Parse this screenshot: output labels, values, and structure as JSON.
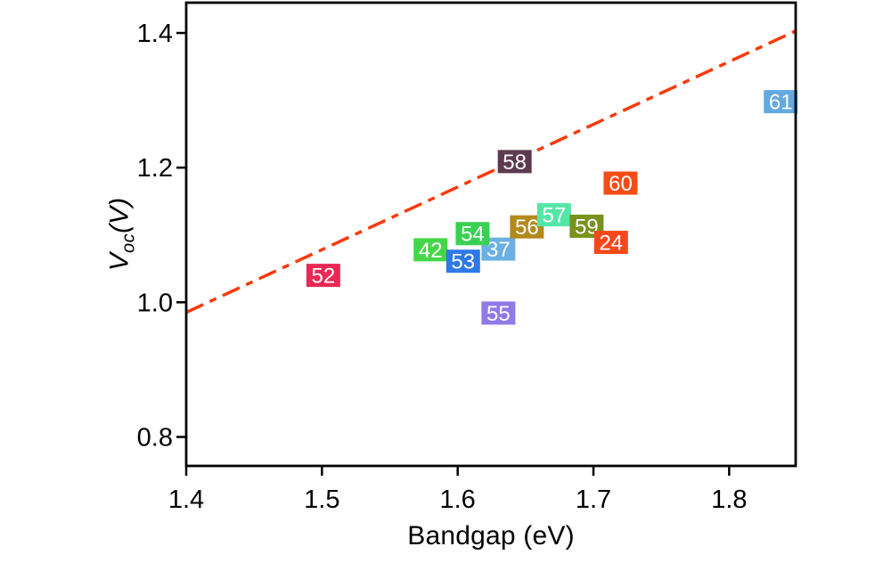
{
  "figure": {
    "background": "#ffffff",
    "axis_color": "#000000"
  },
  "chart_data": {
    "type": "scatter",
    "title": "",
    "xlabel": "Bandgap (eV)",
    "ylabel": {
      "main": "V",
      "sub": "oc",
      "unit": "(V)"
    },
    "xlim": [
      1.4,
      1.849
    ],
    "ylim": [
      0.757,
      1.445
    ],
    "grid": false,
    "legend": "none",
    "x_ticks": [
      {
        "value": 1.4,
        "label": "1.4"
      },
      {
        "value": 1.5,
        "label": "1.5"
      },
      {
        "value": 1.6,
        "label": "1.6"
      },
      {
        "value": 1.7,
        "label": "1.7"
      },
      {
        "value": 1.8,
        "label": "1.8"
      }
    ],
    "y_ticks": [
      {
        "value": 0.8,
        "label": "0.8"
      },
      {
        "value": 1.0,
        "label": "1.0"
      },
      {
        "value": 1.2,
        "label": "1.2"
      },
      {
        "value": 1.4,
        "label": "1.4"
      }
    ],
    "reference_line": {
      "style": "dash-dot",
      "color": "#fb3a0d",
      "width": 3.5,
      "dash_pattern": [
        21,
        8,
        8,
        8
      ],
      "points": [
        [
          1.4,
          0.985
        ],
        [
          1.849,
          1.403
        ]
      ]
    },
    "marker": {
      "shape": "square",
      "width": 38,
      "height": 26,
      "text_color": "#ffffff"
    },
    "points": [
      {
        "label": "42",
        "x": 1.58,
        "y": 1.078,
        "color": "#45d648"
      },
      {
        "label": "37",
        "x": 1.63,
        "y": 1.079,
        "color": "#6ab0e2"
      },
      {
        "label": "53",
        "x": 1.604,
        "y": 1.061,
        "color": "#2e79e8"
      },
      {
        "label": "54",
        "x": 1.611,
        "y": 1.102,
        "color": "#3ad052"
      },
      {
        "label": "52",
        "x": 1.501,
        "y": 1.04,
        "color": "#e92955"
      },
      {
        "label": "55",
        "x": 1.63,
        "y": 0.984,
        "color": "#8f7ae8"
      },
      {
        "label": "58",
        "x": 1.642,
        "y": 1.209,
        "color": "#5d3a4e"
      },
      {
        "label": "56",
        "x": 1.651,
        "y": 1.112,
        "color": "#b3891a"
      },
      {
        "label": "57",
        "x": 1.671,
        "y": 1.13,
        "color": "#55e6a7"
      },
      {
        "label": "59",
        "x": 1.695,
        "y": 1.113,
        "color": "#78921c"
      },
      {
        "label": "24",
        "x": 1.713,
        "y": 1.089,
        "color": "#f7481a"
      },
      {
        "label": "60",
        "x": 1.72,
        "y": 1.177,
        "color": "#f84c16"
      },
      {
        "label": "61",
        "x": 1.838,
        "y": 1.298,
        "color": "#64a8e2"
      }
    ]
  }
}
